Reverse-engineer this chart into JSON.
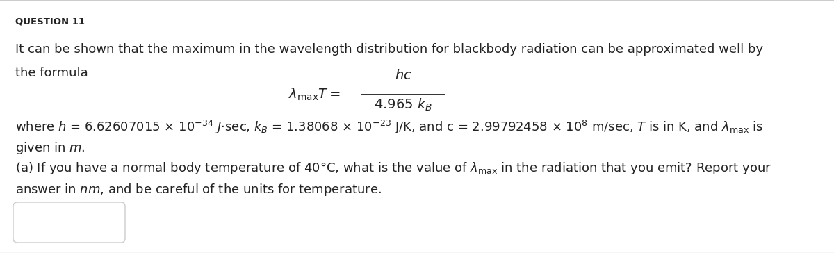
{
  "title": "QUESTION 11",
  "bg_color": "#ffffff",
  "text_color": "#222222",
  "title_fontsize": 9.5,
  "body_fontsize": 13.0,
  "formula_fontsize": 14.0,
  "figsize": [
    12.0,
    3.64
  ],
  "dpi": 100,
  "line1": "It can be shown that the maximum in the wavelength distribution for blackbody radiation can be approximated well by",
  "line2": "the formula",
  "where_line": "where $h$ = 6.62607015 × 10$^{-34}$ $J$·sec, $k_B$ = 1.38068 × 10$^{-23}$ J/K, and c = 2.99792458 × 10$^8$ m/sec, $T$ is in K, and $\\lambda_{\\mathrm{max}}$ is",
  "given_line": "given in $m$.",
  "part_a_line": "(a) If you have a normal body temperature of 40°C, what is the value of $\\lambda_{\\mathrm{max}}$ in the radiation that you emit? Report your",
  "answer_line": "answer in $nm$, and be careful of the units for temperature.",
  "formula_lhs": "$\\lambda_{\\mathrm{max}}T =$",
  "formula_num": "$hc$",
  "formula_den": "$4.965\\ k_B$"
}
